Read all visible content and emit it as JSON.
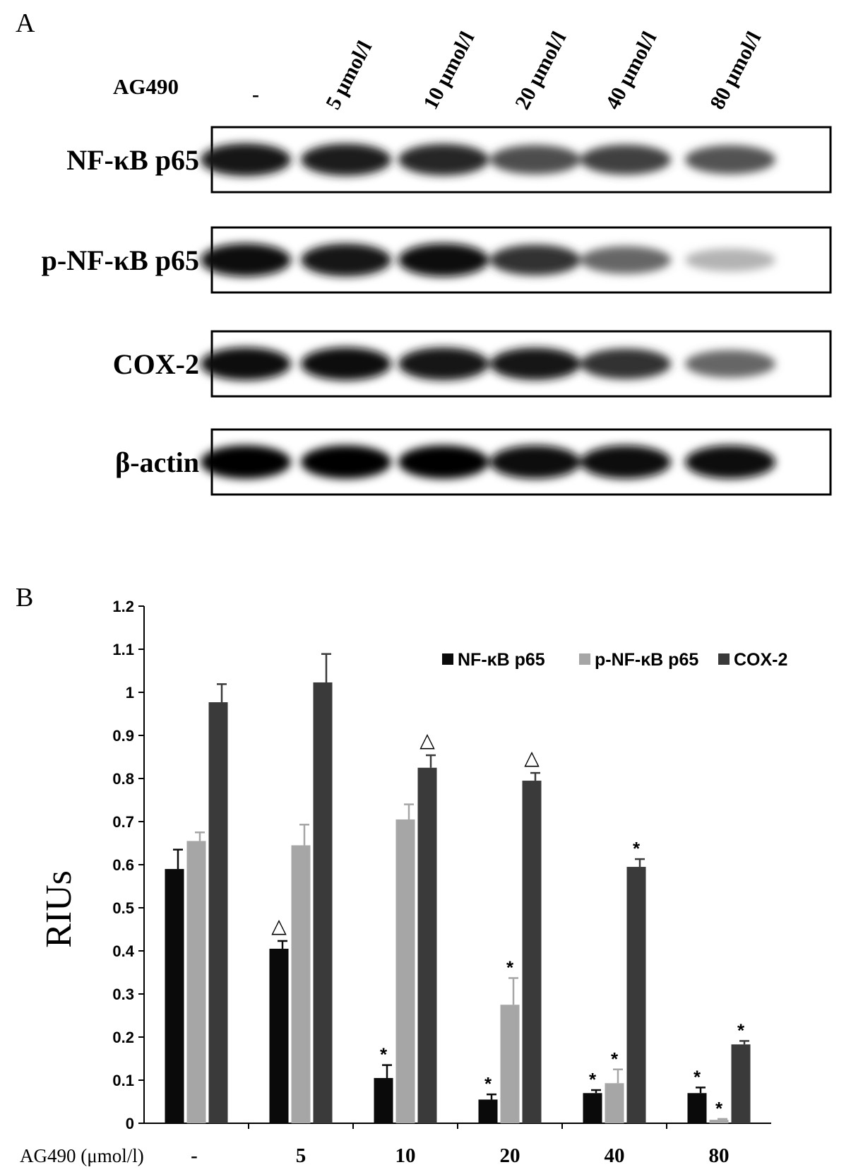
{
  "panel_a": {
    "letter": "A",
    "treatment_label": "AG490",
    "control_mark": "-",
    "lanes": [
      "5 μmol/l",
      "10 μmol/l",
      "20 μmol/l",
      "40 μmol/l",
      "80 μmol/l"
    ],
    "rows": [
      {
        "label": "NF-κB p65",
        "intensity": [
          0.92,
          0.88,
          0.85,
          0.7,
          0.75,
          0.68
        ]
      },
      {
        "label": "p-NF-κB p65",
        "intensity": [
          0.95,
          0.93,
          0.96,
          0.8,
          0.6,
          0.3
        ]
      },
      {
        "label": "COX-2",
        "intensity": [
          0.94,
          0.95,
          0.93,
          0.9,
          0.8,
          0.6
        ]
      },
      {
        "label": "β-actin",
        "intensity": [
          0.98,
          0.98,
          0.98,
          0.97,
          0.97,
          0.97
        ]
      }
    ]
  },
  "chart_data": {
    "panel_letter": "B",
    "type": "bar",
    "ylabel": "RIUs",
    "xlabel": "AG490 (μmol/l)",
    "categories": [
      "-",
      "5",
      "10",
      "20",
      "40",
      "80"
    ],
    "ylim": [
      0,
      1.2
    ],
    "yticks": [
      "0",
      "0.1",
      "0.2",
      "0.3",
      "0.4",
      "0.5",
      "0.6",
      "0.7",
      "0.8",
      "0.9",
      "1",
      "1.1",
      "1.2"
    ],
    "legend_position": "top-right",
    "series": [
      {
        "name": "NF-κB p65",
        "color": "#0a0a0a",
        "values": [
          0.59,
          0.405,
          0.105,
          0.055,
          0.07,
          0.07
        ],
        "errors": [
          0.045,
          0.018,
          0.03,
          0.012,
          0.007,
          0.013
        ],
        "annotations": [
          "",
          "△",
          "*",
          "*",
          "*",
          "*"
        ]
      },
      {
        "name": "p-NF-κB p65",
        "color": "#a6a6a6",
        "values": [
          0.655,
          0.645,
          0.705,
          0.275,
          0.093,
          0.008
        ],
        "errors": [
          0.02,
          0.048,
          0.035,
          0.062,
          0.032,
          0.002
        ],
        "annotations": [
          "",
          "",
          "",
          "*",
          "*",
          "*"
        ]
      },
      {
        "name": "COX-2",
        "color": "#3a3a3a",
        "values": [
          0.977,
          1.023,
          0.825,
          0.795,
          0.595,
          0.183
        ],
        "errors": [
          0.042,
          0.066,
          0.029,
          0.018,
          0.018,
          0.008
        ],
        "annotations": [
          "",
          "",
          "△",
          "△",
          "*",
          "*"
        ]
      }
    ]
  }
}
